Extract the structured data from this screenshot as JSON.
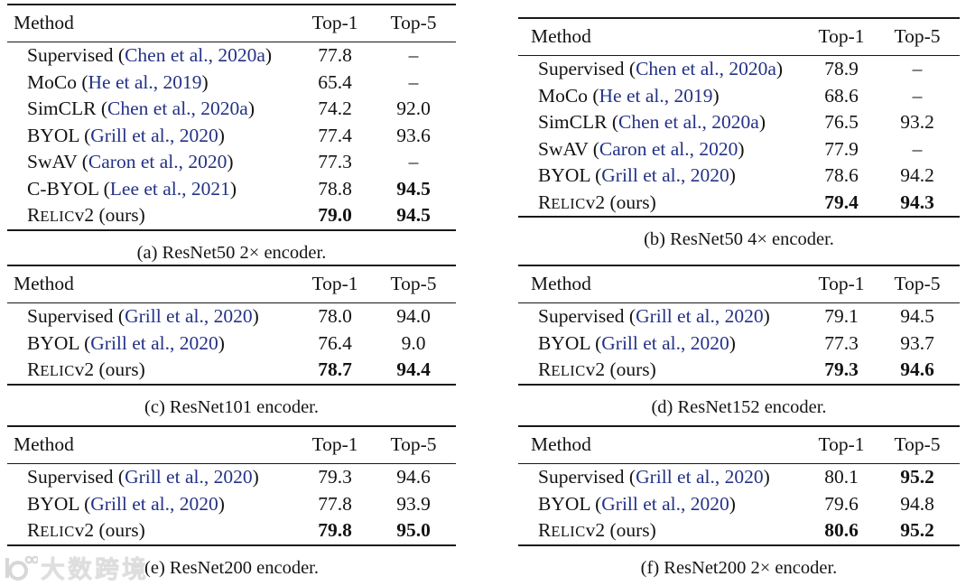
{
  "colors": {
    "text": "#131313",
    "citation_blue": "#243286",
    "rule": "#181818",
    "watermark_gray": "#d7d7d7",
    "background": "#ffffff"
  },
  "watermark": {
    "logo_icon": "rings-logo",
    "text": "大数跨境"
  },
  "tables": [
    {
      "key": "a",
      "caption": "(a) ResNet50 2× encoder.",
      "headers": {
        "method": "Method",
        "top1": "Top-1",
        "top5": "Top-5"
      },
      "rows": [
        {
          "method": [
            {
              "t": "Supervised ("
            },
            {
              "t": "Chen et al., 2020a",
              "s": "cite"
            },
            {
              "t": ")"
            }
          ],
          "top1": "77.8",
          "top5": "–"
        },
        {
          "method": [
            {
              "t": "MoCo ("
            },
            {
              "t": "He et al., 2019",
              "s": "cite"
            },
            {
              "t": ")"
            }
          ],
          "top1": "65.4",
          "top5": "–"
        },
        {
          "method": [
            {
              "t": "SimCLR ("
            },
            {
              "t": "Chen et al., 2020a",
              "s": "cite"
            },
            {
              "t": ")"
            }
          ],
          "top1": "74.2",
          "top5": "92.0"
        },
        {
          "method": [
            {
              "t": "BYOL ("
            },
            {
              "t": "Grill et al., 2020",
              "s": "cite"
            },
            {
              "t": ")"
            }
          ],
          "top1": "77.4",
          "top5": "93.6"
        },
        {
          "method": [
            {
              "t": "SwAV ("
            },
            {
              "t": "Caron et al., 2020",
              "s": "cite"
            },
            {
              "t": ")"
            }
          ],
          "top1": "77.3",
          "top5": "–"
        },
        {
          "method": [
            {
              "t": "C-BYOL ("
            },
            {
              "t": "Lee et al., 2021",
              "s": "cite"
            },
            {
              "t": ")"
            }
          ],
          "top1": "78.8",
          "top5": "94.5",
          "b5": true
        },
        {
          "method": [
            {
              "t": "R"
            },
            {
              "t": "ELIC",
              "s": "sc"
            },
            {
              "t": "v2 (ours)"
            }
          ],
          "top1": "79.0",
          "top5": "94.5",
          "b1": true,
          "b5": true
        }
      ]
    },
    {
      "key": "b",
      "caption": "(b) ResNet50 4× encoder.",
      "headers": {
        "method": "Method",
        "top1": "Top-1",
        "top5": "Top-5"
      },
      "rows": [
        {
          "method": [
            {
              "t": "Supervised ("
            },
            {
              "t": "Chen et al., 2020a",
              "s": "cite"
            },
            {
              "t": ")"
            }
          ],
          "top1": "78.9",
          "top5": "–"
        },
        {
          "method": [
            {
              "t": "MoCo ("
            },
            {
              "t": "He et al., 2019",
              "s": "cite"
            },
            {
              "t": ")"
            }
          ],
          "top1": "68.6",
          "top5": "–"
        },
        {
          "method": [
            {
              "t": "SimCLR ("
            },
            {
              "t": "Chen et al., 2020a",
              "s": "cite"
            },
            {
              "t": ")"
            }
          ],
          "top1": "76.5",
          "top5": "93.2"
        },
        {
          "method": [
            {
              "t": "SwAV ("
            },
            {
              "t": "Caron et al., 2020",
              "s": "cite"
            },
            {
              "t": ")"
            }
          ],
          "top1": "77.9",
          "top5": "–"
        },
        {
          "method": [
            {
              "t": "BYOL ("
            },
            {
              "t": "Grill et al., 2020",
              "s": "cite"
            },
            {
              "t": ")"
            }
          ],
          "top1": "78.6",
          "top5": "94.2"
        },
        {
          "method": [
            {
              "t": "R"
            },
            {
              "t": "ELIC",
              "s": "sc"
            },
            {
              "t": "v2 (ours)"
            }
          ],
          "top1": "79.4",
          "top5": "94.3",
          "b1": true,
          "b5": true
        }
      ]
    },
    {
      "key": "c",
      "caption": "(c) ResNet101 encoder.",
      "headers": {
        "method": "Method",
        "top1": "Top-1",
        "top5": "Top-5"
      },
      "rows": [
        {
          "method": [
            {
              "t": "Supervised ("
            },
            {
              "t": "Grill et al., 2020",
              "s": "cite"
            },
            {
              "t": ")"
            }
          ],
          "top1": "78.0",
          "top5": "94.0"
        },
        {
          "method": [
            {
              "t": "BYOL ("
            },
            {
              "t": "Grill et al., 2020",
              "s": "cite"
            },
            {
              "t": ")"
            }
          ],
          "top1": "76.4",
          "top5": "9.0"
        },
        {
          "method": [
            {
              "t": "R"
            },
            {
              "t": "ELIC",
              "s": "sc"
            },
            {
              "t": "v2 (ours)"
            }
          ],
          "top1": "78.7",
          "top5": "94.4",
          "b1": true,
          "b5": true
        }
      ]
    },
    {
      "key": "d",
      "caption": "(d) ResNet152 encoder.",
      "headers": {
        "method": "Method",
        "top1": "Top-1",
        "top5": "Top-5"
      },
      "rows": [
        {
          "method": [
            {
              "t": "Supervised ("
            },
            {
              "t": "Grill et al., 2020",
              "s": "cite"
            },
            {
              "t": ")"
            }
          ],
          "top1": "79.1",
          "top5": "94.5"
        },
        {
          "method": [
            {
              "t": "BYOL ("
            },
            {
              "t": "Grill et al., 2020",
              "s": "cite"
            },
            {
              "t": ")"
            }
          ],
          "top1": "77.3",
          "top5": "93.7"
        },
        {
          "method": [
            {
              "t": "R"
            },
            {
              "t": "ELIC",
              "s": "sc"
            },
            {
              "t": "v2 (ours)"
            }
          ],
          "top1": "79.3",
          "top5": "94.6",
          "b1": true,
          "b5": true
        }
      ]
    },
    {
      "key": "e",
      "caption": "(e) ResNet200 encoder.",
      "headers": {
        "method": "Method",
        "top1": "Top-1",
        "top5": "Top-5"
      },
      "rows": [
        {
          "method": [
            {
              "t": "Supervised ("
            },
            {
              "t": "Grill et al., 2020",
              "s": "cite"
            },
            {
              "t": ")"
            }
          ],
          "top1": "79.3",
          "top5": "94.6"
        },
        {
          "method": [
            {
              "t": "BYOL ("
            },
            {
              "t": "Grill et al., 2020",
              "s": "cite"
            },
            {
              "t": ")"
            }
          ],
          "top1": "77.8",
          "top5": "93.9"
        },
        {
          "method": [
            {
              "t": "R"
            },
            {
              "t": "ELIC",
              "s": "sc"
            },
            {
              "t": "v2 (ours)"
            }
          ],
          "top1": "79.8",
          "top5": "95.0",
          "b1": true,
          "b5": true
        }
      ]
    },
    {
      "key": "f",
      "caption": "(f) ResNet200 2× encoder.",
      "headers": {
        "method": "Method",
        "top1": "Top-1",
        "top5": "Top-5"
      },
      "rows": [
        {
          "method": [
            {
              "t": "Supervised ("
            },
            {
              "t": "Grill et al., 2020",
              "s": "cite"
            },
            {
              "t": ")"
            }
          ],
          "top1": "80.1",
          "top5": "95.2",
          "b5": true
        },
        {
          "method": [
            {
              "t": "BYOL ("
            },
            {
              "t": "Grill et al., 2020",
              "s": "cite"
            },
            {
              "t": ")"
            }
          ],
          "top1": "79.6",
          "top5": "94.8"
        },
        {
          "method": [
            {
              "t": "R"
            },
            {
              "t": "ELIC",
              "s": "sc"
            },
            {
              "t": "v2 (ours)"
            }
          ],
          "top1": "80.6",
          "top5": "95.2",
          "b1": true,
          "b5": true
        }
      ]
    }
  ]
}
